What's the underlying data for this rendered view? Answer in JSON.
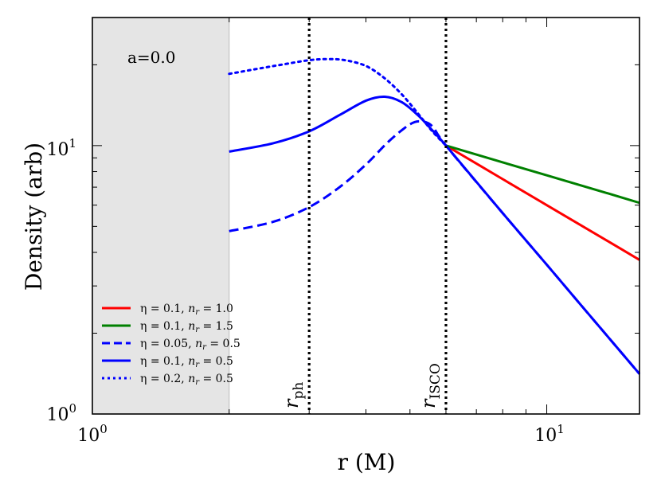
{
  "chart_data": {
    "type": "line",
    "xscale": "log",
    "yscale": "log",
    "xlim": [
      1.0,
      16.0
    ],
    "ylim": [
      1.0,
      30.0
    ],
    "xlabel": "r (M)",
    "ylabel": "Density (arb)",
    "xtick_labels": [
      {
        "value": 1,
        "base": "10",
        "exp": "0"
      },
      {
        "value": 10,
        "base": "10",
        "exp": "1"
      }
    ],
    "ytick_labels": [
      {
        "value": 1,
        "base": "10",
        "exp": "0"
      },
      {
        "value": 10,
        "base": "10",
        "exp": "1"
      }
    ],
    "shaded_region": {
      "x_from": 1.0,
      "x_to": 2.0,
      "color": "#e5e5e5"
    },
    "annotation": "a=0.0",
    "vlines": [
      {
        "x": 3.0,
        "label_main": "r",
        "label_sub": "ph"
      },
      {
        "x": 6.0,
        "label_main": "r",
        "label_sub": "ISCO"
      }
    ],
    "legend_position": "lower-left",
    "series": [
      {
        "name": "η = 0.1, n_r = 1.0",
        "eta": "η = 0.1, ",
        "n_main": "n",
        "n_sub": "r",
        "n_val": " = 1.0",
        "color": "#ff0000",
        "dash": "solid",
        "x": [
          6.0,
          8.0,
          10.0,
          12.0,
          14.0,
          16.0
        ],
        "y": [
          10.0,
          7.5,
          6.0,
          5.0,
          4.29,
          3.75
        ]
      },
      {
        "name": "η = 0.1, n_r = 1.5",
        "eta": "η = 0.1, ",
        "n_main": "n",
        "n_sub": "r",
        "n_val": " = 1.5",
        "color": "#008000",
        "dash": "solid",
        "x": [
          6.0,
          8.0,
          10.0,
          12.0,
          14.0,
          16.0
        ],
        "y": [
          10.0,
          8.66,
          7.75,
          7.07,
          6.55,
          6.12
        ]
      },
      {
        "name": "η = 0.05, n_r = 0.5",
        "eta": "η = 0.05, ",
        "n_main": "n",
        "n_sub": "r",
        "n_val": " = 0.5",
        "color": "#0000ff",
        "dash": "dashed",
        "x": [
          2.0,
          2.5,
          3.0,
          3.5,
          4.0,
          4.5,
          5.0,
          5.3,
          5.6,
          6.0,
          8.0,
          10.0,
          12.0,
          14.0,
          16.0
        ],
        "y": [
          4.8,
          5.2,
          5.9,
          7.0,
          8.5,
          10.4,
          12.0,
          12.3,
          11.8,
          10.0,
          5.6,
          3.6,
          2.5,
          1.84,
          1.41
        ]
      },
      {
        "name": "η = 0.1, n_r = 0.5",
        "eta": "η = 0.1, ",
        "n_main": "n",
        "n_sub": "r",
        "n_val": " = 0.5",
        "color": "#0000ff",
        "dash": "solid",
        "x": [
          2.0,
          2.5,
          3.0,
          3.5,
          4.0,
          4.4,
          4.8,
          5.2,
          5.6,
          6.0,
          8.0,
          10.0,
          12.0,
          14.0,
          16.0
        ],
        "y": [
          9.5,
          10.2,
          11.3,
          13.0,
          14.7,
          15.2,
          14.5,
          13.0,
          11.4,
          10.0,
          5.6,
          3.6,
          2.5,
          1.84,
          1.41
        ]
      },
      {
        "name": "η = 0.2, n_r = 0.5",
        "eta": "η = 0.2, ",
        "n_main": "n",
        "n_sub": "r",
        "n_val": " = 0.5",
        "color": "#0000ff",
        "dash": "dotted",
        "x": [
          2.0,
          2.3,
          2.6,
          3.0,
          3.3,
          3.6,
          4.0,
          4.4,
          4.8,
          5.2,
          5.6,
          6.0
        ],
        "y": [
          18.5,
          19.3,
          20.0,
          20.8,
          21.0,
          20.8,
          19.8,
          17.8,
          15.5,
          13.2,
          11.3,
          10.0
        ]
      }
    ]
  }
}
